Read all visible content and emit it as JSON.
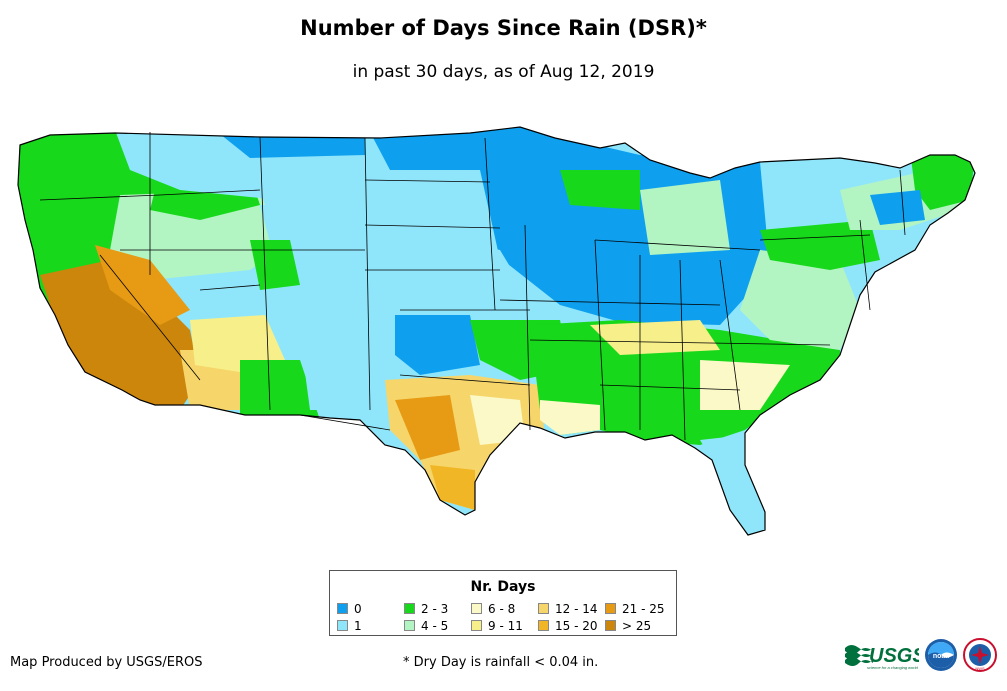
{
  "title": "Number of Days Since Rain (DSR)*",
  "subtitle": "in past 30 days, as of Aug 12, 2019",
  "legend": {
    "title": "Nr. Days",
    "items": [
      {
        "label": "0",
        "color": "#0ea0ef"
      },
      {
        "label": "1",
        "color": "#8fe6fb"
      },
      {
        "label": "2 - 3",
        "color": "#17d81a"
      },
      {
        "label": "4 - 5",
        "color": "#b3f4c3"
      },
      {
        "label": "6 - 8",
        "color": "#fbf9c8"
      },
      {
        "label": "9 - 11",
        "color": "#f7f08a"
      },
      {
        "label": "12 - 14",
        "color": "#f6d66a"
      },
      {
        "label": "15 - 20",
        "color": "#f1b626"
      },
      {
        "label": "21 - 25",
        "color": "#e79a14"
      },
      {
        "label": "> 25",
        "color": "#cc860c"
      }
    ]
  },
  "credit": "Map Produced by USGS/EROS",
  "footnote": "* Dry Day is rainfall < 0.04 in.",
  "logos": {
    "usgs": "USGS",
    "usgs_tagline": "science for a changing world",
    "noaa": "noaa",
    "nws": "NWS"
  }
}
